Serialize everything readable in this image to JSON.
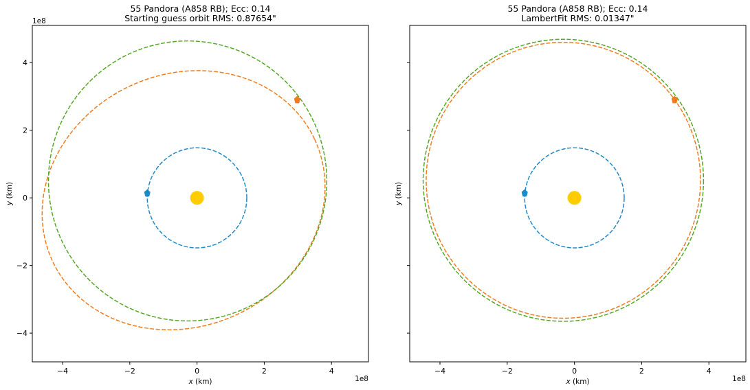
{
  "chart_data": [
    {
      "type": "line",
      "title": "55 Pandora (A858 RB); Ecc: 0.14",
      "subtitle": "Starting guess orbit RMS: 0.87654\"",
      "xlabel": "x (km)",
      "ylabel": "y (km)",
      "axis_multiplier": "1e8",
      "xlim": [
        -4.9,
        5.1
      ],
      "ylim": [
        -4.85,
        5.1
      ],
      "xticks": [
        -4,
        -2,
        0,
        2,
        4
      ],
      "yticks": [
        -4,
        -2,
        0,
        2,
        4
      ],
      "xtick_labels": [
        "−4",
        "−2",
        "0",
        "2",
        "4"
      ],
      "ytick_labels": [
        "−4",
        "−2",
        "0",
        "2",
        "4"
      ],
      "show_y_tick_labels": true,
      "grid": false,
      "sun": {
        "x": 0,
        "y": 0,
        "color": "#ffcc00"
      },
      "series": [
        {
          "kind": "ellipse",
          "cx": 0,
          "cy": 0,
          "rx": 1.48,
          "ry": 1.48,
          "rot": 0,
          "color": "#1f8ac8"
        },
        {
          "kind": "ellipse",
          "cx": -0.4,
          "cy": -0.07,
          "rx": 4.3,
          "ry": 3.73,
          "rot": -25,
          "color": "#f07c1b"
        },
        {
          "kind": "ellipse",
          "cx": -0.28,
          "cy": 0.5,
          "rx": 4.14,
          "ry": 4.14,
          "rot": 0,
          "color": "#54a824"
        }
      ],
      "markers": [
        {
          "x": -1.48,
          "y": 0.14,
          "color": "#1f8ac8"
        },
        {
          "x": 2.98,
          "y": 2.9,
          "color": "#f07c1b"
        }
      ]
    },
    {
      "type": "line",
      "title": "55 Pandora (A858 RB); Ecc: 0.14",
      "subtitle": "LambertFit RMS: 0.01347\"",
      "xlabel": "x (km)",
      "ylabel": "y (km)",
      "axis_multiplier": "1e8",
      "xlim": [
        -4.9,
        5.1
      ],
      "ylim": [
        -4.85,
        5.1
      ],
      "xticks": [
        -4,
        -2,
        0,
        2,
        4
      ],
      "yticks": [
        -4,
        -2,
        0,
        2,
        4
      ],
      "xtick_labels": [
        "−4",
        "−2",
        "0",
        "2",
        "4"
      ],
      "ytick_labels": [],
      "show_y_tick_labels": false,
      "grid": false,
      "sun": {
        "x": 0,
        "y": 0,
        "color": "#ffcc00"
      },
      "series": [
        {
          "kind": "ellipse",
          "cx": 0,
          "cy": 0,
          "rx": 1.48,
          "ry": 1.48,
          "rot": 0,
          "color": "#1f8ac8"
        },
        {
          "kind": "ellipse",
          "cx": -0.33,
          "cy": 0.52,
          "rx": 4.08,
          "ry": 4.08,
          "rot": 0,
          "color": "#f07c1b"
        },
        {
          "kind": "ellipse",
          "cx": -0.33,
          "cy": 0.52,
          "rx": 4.17,
          "ry": 4.17,
          "rot": 0,
          "color": "#54a824"
        }
      ],
      "markers": [
        {
          "x": -1.48,
          "y": 0.14,
          "color": "#1f8ac8"
        },
        {
          "x": 2.98,
          "y": 2.9,
          "color": "#f07c1b"
        }
      ]
    }
  ]
}
